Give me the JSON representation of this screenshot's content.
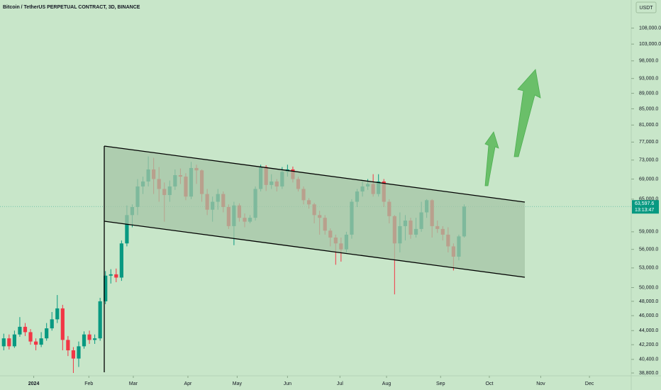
{
  "chart_data": {
    "type": "candlestick",
    "title": "Bitcoin / TetherUS PERPETUAL CONTRACT, 3D, BINANCE",
    "currency": "USDT",
    "last_price": 63597.6,
    "last_price_label": "63,597.6",
    "countdown": "13:13:47",
    "log_scale": true,
    "up_color": "#089981",
    "down_color": "#f23645",
    "ylim": [
      38475,
      117400
    ],
    "yticks": [
      {
        "value": 108000,
        "label": "108,000.0"
      },
      {
        "value": 103000,
        "label": "103,000.0"
      },
      {
        "value": 98000,
        "label": "98,000.0"
      },
      {
        "value": 93000,
        "label": "93,000.0"
      },
      {
        "value": 89000,
        "label": "89,000.0"
      },
      {
        "value": 85000,
        "label": "85,000.0"
      },
      {
        "value": 81000,
        "label": "81,000.0"
      },
      {
        "value": 77000,
        "label": "77,000.0"
      },
      {
        "value": 73000,
        "label": "73,000.0"
      },
      {
        "value": 69000,
        "label": "69,000.0"
      },
      {
        "value": 65000,
        "label": "65,000.0"
      },
      {
        "value": 59000,
        "label": "59,000.0"
      },
      {
        "value": 56000,
        "label": "56,000.0"
      },
      {
        "value": 53000,
        "label": "53,000.0"
      },
      {
        "value": 50000,
        "label": "50,000.0"
      },
      {
        "value": 48000,
        "label": "48,000.0"
      },
      {
        "value": 46000,
        "label": "46,000.0"
      },
      {
        "value": 44000,
        "label": "44,000.0"
      },
      {
        "value": 42200,
        "label": "42,200.0"
      },
      {
        "value": 40400,
        "label": "40,400.0"
      },
      {
        "value": 38800,
        "label": "38,800.0"
      }
    ],
    "xlim": [
      -0.7,
      117.2
    ],
    "xticks": [
      {
        "value": 5.6,
        "label": "2024"
      },
      {
        "value": 15.9,
        "label": "Feb"
      },
      {
        "value": 24.2,
        "label": "Mar"
      },
      {
        "value": 34.4,
        "label": "Apr"
      },
      {
        "value": 43.6,
        "label": "May"
      },
      {
        "value": 53.0,
        "label": "Jun"
      },
      {
        "value": 62.8,
        "label": "Jul"
      },
      {
        "value": 71.5,
        "label": "Aug"
      },
      {
        "value": 81.6,
        "label": "Sep"
      },
      {
        "value": 90.7,
        "label": "Oct"
      },
      {
        "value": 100.3,
        "label": "Nov"
      },
      {
        "value": 109.4,
        "label": "Dec"
      }
    ],
    "open": [
      42000,
      43000,
      42000,
      43500,
      44500,
      43800,
      42600,
      42200,
      43000,
      44300,
      45500,
      47000,
      42800,
      41500,
      40500,
      42000,
      43500,
      42800,
      43000,
      48000,
      51800,
      52000,
      51500,
      57000,
      62000,
      63500,
      67500,
      68500,
      71000,
      69000,
      67000,
      65800,
      67500,
      69800,
      69500,
      65500,
      71300,
      70800,
      66000,
      63000,
      64500,
      66000,
      63500,
      60000,
      63800,
      61500,
      60800,
      61500,
      67000,
      71500,
      67800,
      68500,
      67500,
      70500,
      71000,
      69000,
      67000,
      64800,
      64000,
      62000,
      61500,
      59200,
      58000,
      57000,
      56000,
      58500,
      64500,
      66500,
      67500,
      68000,
      66000,
      68500,
      64500,
      61800,
      57000,
      60000,
      61000,
      58500,
      59500,
      62500,
      64800,
      60000,
      59500,
      58500,
      56500,
      54800,
      58200
    ],
    "high": [
      43600,
      43500,
      44000,
      45800,
      45000,
      44200,
      43000,
      43800,
      45000,
      46500,
      48900,
      47500,
      43300,
      41900,
      42600,
      43900,
      44000,
      43500,
      48500,
      52500,
      52800,
      52900,
      57500,
      63800,
      64000,
      69000,
      69500,
      73800,
      73500,
      71500,
      68300,
      68700,
      71000,
      71200,
      70200,
      72600,
      72000,
      71000,
      67000,
      65500,
      67000,
      66500,
      64000,
      64500,
      64200,
      62300,
      62000,
      67500,
      72000,
      71900,
      70000,
      69000,
      71500,
      72000,
      71600,
      69500,
      67500,
      65200,
      64300,
      62800,
      62000,
      59600,
      58500,
      58000,
      59000,
      65000,
      67000,
      68500,
      69000,
      70000,
      70000,
      69000,
      65000,
      62000,
      62500,
      62000,
      61500,
      61500,
      64500,
      65000,
      65000,
      61000,
      60000,
      59800,
      57000,
      58500,
      64000
    ],
    "low": [
      41500,
      41600,
      41800,
      43200,
      43300,
      42200,
      41500,
      41900,
      42700,
      44000,
      45000,
      41500,
      40800,
      38800,
      39500,
      41700,
      42300,
      42300,
      42700,
      47600,
      50600,
      50800,
      51000,
      56500,
      59800,
      62000,
      66000,
      67500,
      66000,
      64500,
      60800,
      64500,
      66800,
      68000,
      64800,
      65000,
      68000,
      64500,
      62000,
      60800,
      63000,
      62500,
      59500,
      56700,
      60800,
      59800,
      60500,
      61000,
      66500,
      66600,
      67000,
      66500,
      67000,
      69500,
      68300,
      66500,
      64000,
      63200,
      60500,
      58500,
      58500,
      56500,
      53500,
      54000,
      55500,
      57800,
      63500,
      65500,
      66800,
      65500,
      65500,
      63500,
      60500,
      49000,
      55500,
      57500,
      57800,
      58000,
      59000,
      61500,
      58000,
      58800,
      57500,
      55500,
      52600,
      54200,
      58000
    ],
    "close": [
      43000,
      42000,
      43500,
      44500,
      43800,
      42600,
      42200,
      43000,
      44300,
      45500,
      47000,
      42800,
      41500,
      40500,
      42000,
      43500,
      42800,
      43000,
      48000,
      51800,
      52000,
      51500,
      57000,
      62000,
      63500,
      67500,
      68500,
      71000,
      69000,
      67000,
      65800,
      67500,
      69800,
      69500,
      65500,
      71300,
      70800,
      66000,
      63000,
      64500,
      66000,
      63500,
      60000,
      63800,
      61500,
      60800,
      61500,
      67000,
      71500,
      67800,
      68500,
      67500,
      70500,
      71000,
      69000,
      67000,
      64800,
      64000,
      62000,
      61500,
      59200,
      58000,
      57000,
      56000,
      58500,
      64500,
      66500,
      67500,
      68000,
      66000,
      68500,
      64500,
      61800,
      57000,
      60000,
      61000,
      58500,
      59500,
      62500,
      64800,
      60000,
      59500,
      58500,
      56500,
      54800,
      58200,
      63597.6
    ]
  }
}
